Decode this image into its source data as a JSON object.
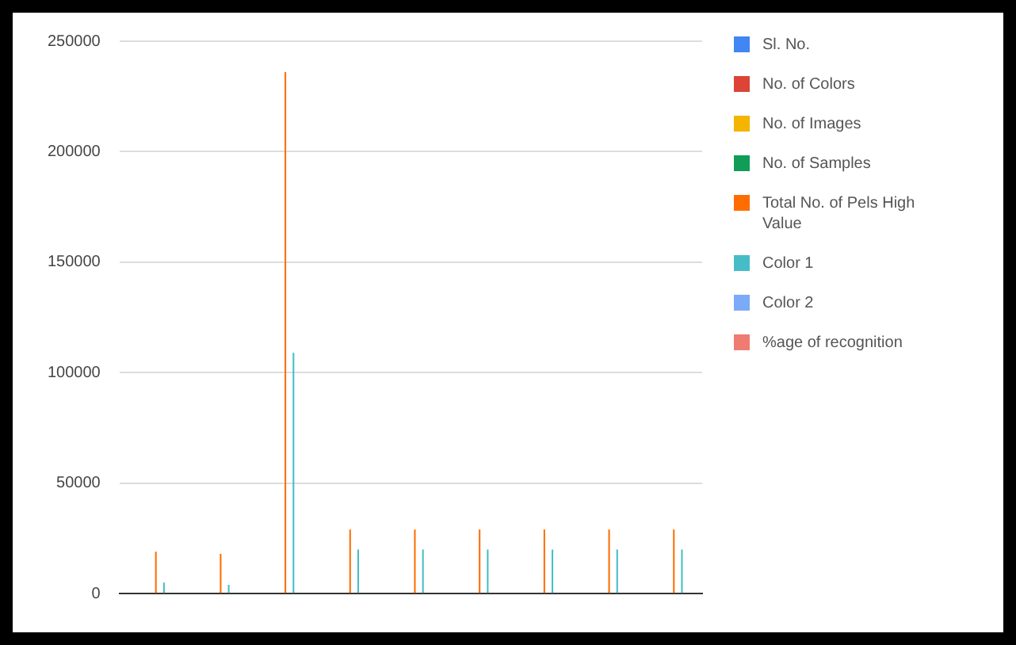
{
  "chart_data": {
    "type": "bar",
    "categories": [
      null,
      null,
      null,
      null,
      null,
      null,
      null,
      null,
      null
    ],
    "series": [
      {
        "name": "Sl. No.",
        "color": "#4285f4",
        "values": [
          0,
          0,
          0,
          0,
          0,
          0,
          0,
          0,
          0
        ]
      },
      {
        "name": "No. of Colors",
        "color": "#db4437",
        "values": [
          0,
          0,
          0,
          0,
          0,
          0,
          0,
          0,
          0
        ]
      },
      {
        "name": "No. of Images",
        "color": "#f4b400",
        "values": [
          0,
          0,
          0,
          0,
          0,
          0,
          0,
          0,
          0
        ]
      },
      {
        "name": "No. of Samples",
        "color": "#0f9d58",
        "values": [
          0,
          0,
          0,
          0,
          0,
          0,
          0,
          0,
          0
        ]
      },
      {
        "name": "Total No. of Pels High Value",
        "color": "#ff6d01",
        "values": [
          19000,
          18000,
          236000,
          29000,
          29000,
          29000,
          29000,
          29000,
          29000
        ]
      },
      {
        "name": "Color 1",
        "color": "#46bdc6",
        "values": [
          5000,
          4000,
          109000,
          20000,
          20000,
          20000,
          20000,
          20000,
          20000
        ]
      },
      {
        "name": "Color 2",
        "color": "#7baaf7",
        "values": [
          0,
          0,
          0,
          0,
          0,
          0,
          0,
          0,
          0
        ]
      },
      {
        "name": "%age of recognition",
        "color": "#f07b72",
        "values": [
          0,
          0,
          0,
          0,
          0,
          0,
          0,
          0,
          0
        ]
      }
    ],
    "ylim": [
      0,
      250000
    ],
    "yticks": [
      0,
      50000,
      100000,
      150000,
      200000,
      250000
    ],
    "grid": "y",
    "legend": "right"
  }
}
